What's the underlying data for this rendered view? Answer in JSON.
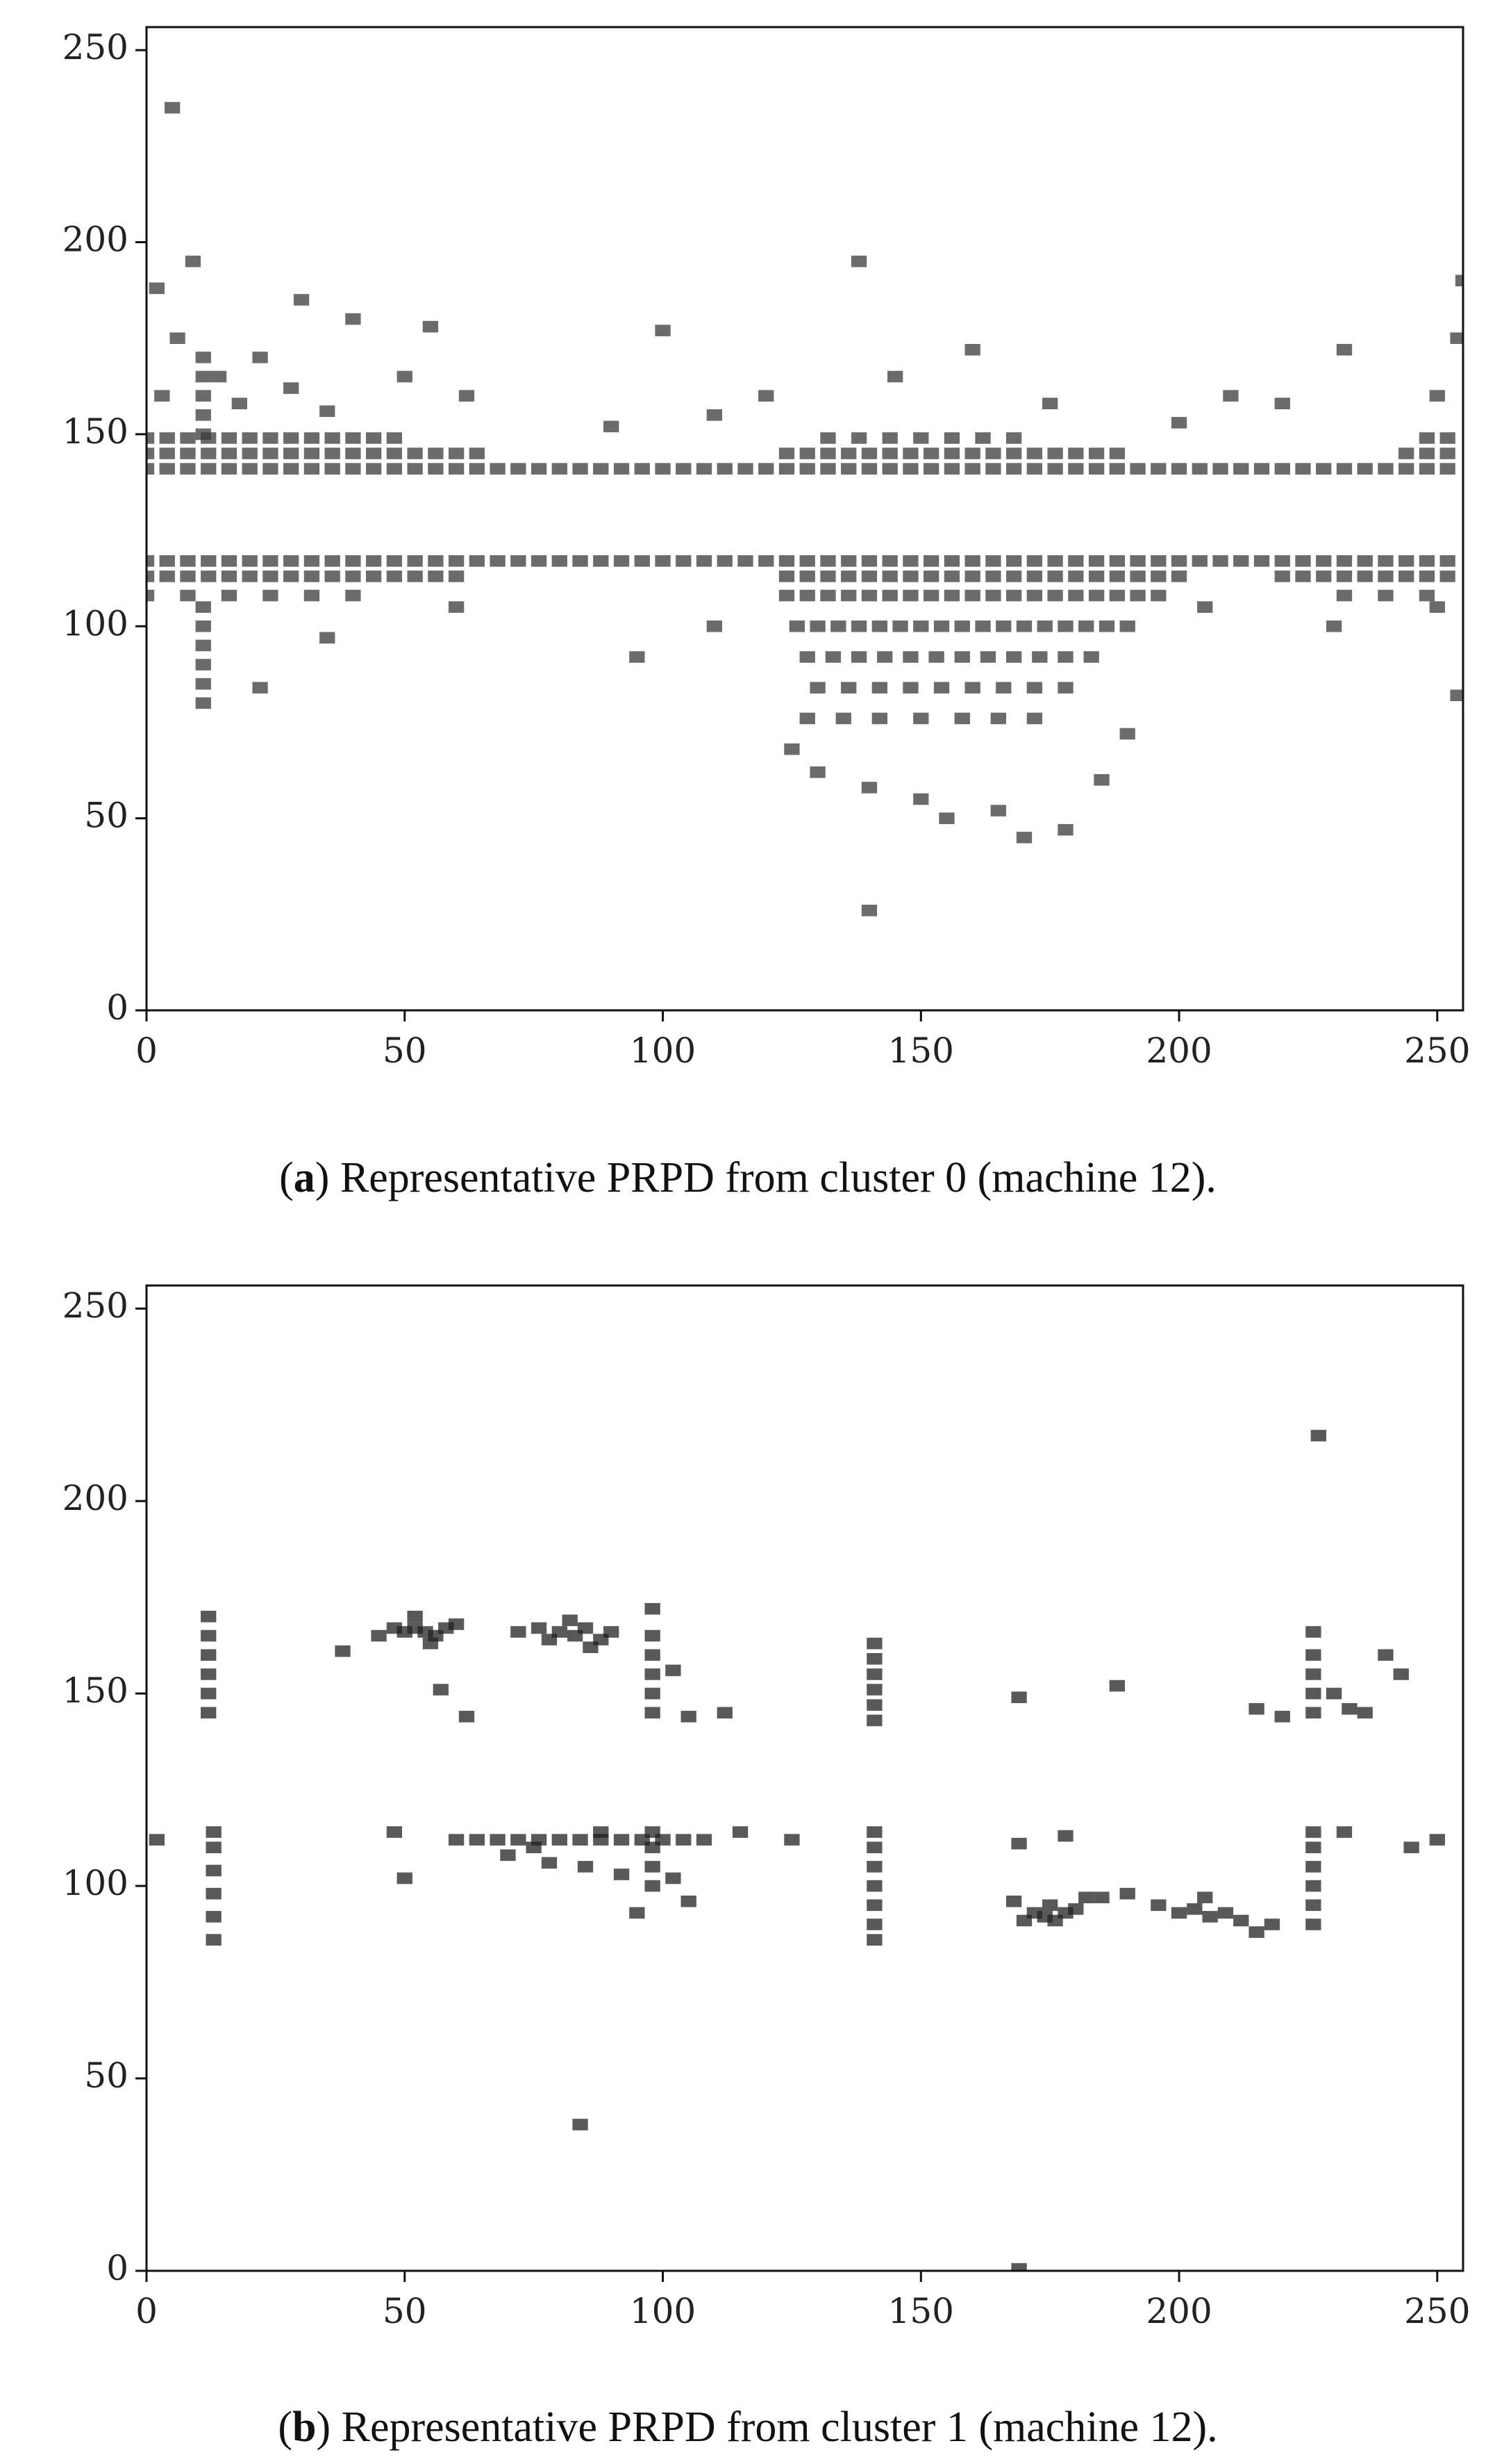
{
  "chart_data": [
    {
      "type": "scatter",
      "color": "#3a3a3a",
      "xlim": [
        0,
        255
      ],
      "ylim": [
        0,
        256
      ],
      "xticks": [
        0,
        50,
        100,
        150,
        200,
        250
      ],
      "yticks": [
        0,
        50,
        100,
        150,
        200,
        250
      ],
      "caption": [
        "(",
        "a",
        ") Representative PRPD from cluster 0 (machine 12)."
      ],
      "x": [
        0,
        4,
        8,
        12,
        16,
        20,
        24,
        28,
        32,
        36,
        40,
        44,
        48,
        52,
        56,
        60,
        64,
        68,
        72,
        76,
        80,
        84,
        88,
        92,
        96,
        100,
        104,
        108,
        112,
        116,
        120,
        124,
        128,
        132,
        136,
        140,
        144,
        148,
        152,
        156,
        160,
        164,
        168,
        172,
        176,
        180,
        184,
        188,
        192,
        196,
        200,
        204,
        208,
        212,
        216,
        220,
        224,
        228,
        232,
        236,
        240,
        244,
        248,
        252,
        0,
        4,
        8,
        12,
        16,
        20,
        24,
        28,
        32,
        36,
        40,
        44,
        48,
        52,
        56,
        60,
        64,
        124,
        128,
        132,
        136,
        140,
        144,
        148,
        152,
        156,
        160,
        164,
        168,
        172,
        176,
        180,
        184,
        188,
        244,
        248,
        252,
        0,
        4,
        8,
        12,
        16,
        20,
        24,
        28,
        32,
        36,
        40,
        44,
        48,
        132,
        138,
        144,
        150,
        156,
        162,
        168,
        248,
        252,
        3,
        6,
        14,
        18,
        22,
        28,
        35,
        40,
        50,
        55,
        62,
        2,
        9,
        5,
        30,
        100,
        120,
        138,
        145,
        160,
        175,
        210,
        220,
        232,
        250,
        254,
        255,
        90,
        110,
        200,
        11,
        11,
        11,
        11,
        11,
        11,
        11,
        11,
        11,
        11,
        11,
        0,
        4,
        8,
        12,
        16,
        20,
        24,
        28,
        32,
        36,
        40,
        44,
        48,
        52,
        56,
        60,
        64,
        68,
        72,
        76,
        80,
        84,
        88,
        92,
        96,
        100,
        104,
        108,
        112,
        116,
        120,
        124,
        128,
        132,
        136,
        140,
        144,
        148,
        152,
        156,
        160,
        164,
        168,
        172,
        176,
        180,
        184,
        188,
        192,
        196,
        200,
        204,
        208,
        212,
        216,
        220,
        224,
        228,
        232,
        236,
        240,
        244,
        248,
        252,
        0,
        4,
        8,
        12,
        16,
        20,
        24,
        28,
        32,
        36,
        40,
        44,
        48,
        52,
        56,
        60,
        124,
        128,
        132,
        136,
        140,
        144,
        148,
        152,
        156,
        160,
        164,
        168,
        172,
        176,
        180,
        184,
        188,
        192,
        196,
        200,
        220,
        224,
        228,
        232,
        236,
        240,
        244,
        248,
        252,
        0,
        8,
        16,
        24,
        32,
        40,
        124,
        128,
        132,
        136,
        140,
        144,
        148,
        152,
        156,
        160,
        164,
        168,
        172,
        176,
        180,
        184,
        188,
        192,
        196,
        232,
        240,
        248,
        126,
        130,
        134,
        138,
        142,
        146,
        150,
        154,
        158,
        162,
        166,
        170,
        174,
        178,
        182,
        186,
        190,
        128,
        133,
        138,
        143,
        148,
        153,
        158,
        163,
        168,
        173,
        178,
        183,
        130,
        136,
        142,
        148,
        154,
        160,
        166,
        172,
        178,
        128,
        135,
        142,
        150,
        158,
        165,
        172,
        125,
        130,
        140,
        150,
        155,
        165,
        170,
        178,
        140,
        185,
        190,
        22,
        35,
        60,
        95,
        110,
        230,
        250,
        254,
        205
      ],
      "y": [
        141,
        141,
        141,
        141,
        141,
        141,
        141,
        141,
        141,
        141,
        141,
        141,
        141,
        141,
        141,
        141,
        141,
        141,
        141,
        141,
        141,
        141,
        141,
        141,
        141,
        141,
        141,
        141,
        141,
        141,
        141,
        141,
        141,
        141,
        141,
        141,
        141,
        141,
        141,
        141,
        141,
        141,
        141,
        141,
        141,
        141,
        141,
        141,
        141,
        141,
        141,
        141,
        141,
        141,
        141,
        141,
        141,
        141,
        141,
        141,
        141,
        141,
        141,
        141,
        145,
        145,
        145,
        145,
        145,
        145,
        145,
        145,
        145,
        145,
        145,
        145,
        145,
        145,
        145,
        145,
        145,
        145,
        145,
        145,
        145,
        145,
        145,
        145,
        145,
        145,
        145,
        145,
        145,
        145,
        145,
        145,
        145,
        145,
        145,
        145,
        145,
        149,
        149,
        149,
        149,
        149,
        149,
        149,
        149,
        149,
        149,
        149,
        149,
        149,
        149,
        149,
        149,
        149,
        149,
        149,
        149,
        149,
        149,
        160,
        175,
        165,
        158,
        170,
        162,
        156,
        180,
        165,
        178,
        160,
        188,
        195,
        235,
        185,
        177,
        160,
        195,
        165,
        172,
        158,
        160,
        158,
        172,
        160,
        175,
        190,
        152,
        155,
        153,
        150,
        155,
        160,
        165,
        170,
        80,
        85,
        90,
        95,
        100,
        105,
        117,
        117,
        117,
        117,
        117,
        117,
        117,
        117,
        117,
        117,
        117,
        117,
        117,
        117,
        117,
        117,
        117,
        117,
        117,
        117,
        117,
        117,
        117,
        117,
        117,
        117,
        117,
        117,
        117,
        117,
        117,
        117,
        117,
        117,
        117,
        117,
        117,
        117,
        117,
        117,
        117,
        117,
        117,
        117,
        117,
        117,
        117,
        117,
        117,
        117,
        117,
        117,
        117,
        117,
        117,
        117,
        117,
        117,
        117,
        117,
        117,
        117,
        117,
        117,
        113,
        113,
        113,
        113,
        113,
        113,
        113,
        113,
        113,
        113,
        113,
        113,
        113,
        113,
        113,
        113,
        113,
        113,
        113,
        113,
        113,
        113,
        113,
        113,
        113,
        113,
        113,
        113,
        113,
        113,
        113,
        113,
        113,
        113,
        113,
        113,
        113,
        113,
        113,
        113,
        113,
        113,
        113,
        113,
        113,
        108,
        108,
        108,
        108,
        108,
        108,
        108,
        108,
        108,
        108,
        108,
        108,
        108,
        108,
        108,
        108,
        108,
        108,
        108,
        108,
        108,
        108,
        108,
        108,
        108,
        108,
        108,
        108,
        100,
        100,
        100,
        100,
        100,
        100,
        100,
        100,
        100,
        100,
        100,
        100,
        100,
        100,
        100,
        100,
        100,
        92,
        92,
        92,
        92,
        92,
        92,
        92,
        92,
        92,
        92,
        92,
        92,
        84,
        84,
        84,
        84,
        84,
        84,
        84,
        84,
        84,
        76,
        76,
        76,
        76,
        76,
        76,
        76,
        68,
        62,
        58,
        55,
        50,
        52,
        45,
        47,
        26,
        60,
        72,
        84,
        97,
        105,
        92,
        100,
        100,
        105,
        82,
        105
      ]
    },
    {
      "type": "scatter",
      "color": "#222222",
      "xlim": [
        0,
        255
      ],
      "ylim": [
        0,
        256
      ],
      "xticks": [
        0,
        50,
        100,
        150,
        200,
        250
      ],
      "yticks": [
        0,
        50,
        100,
        150,
        200,
        250
      ],
      "caption": [
        "(",
        "b",
        ") Representative PRPD from cluster 1 (machine 12)."
      ],
      "x": [
        12,
        12,
        12,
        12,
        12,
        12,
        13,
        13,
        13,
        13,
        13,
        13,
        45,
        48,
        50,
        52,
        54,
        56,
        58,
        52,
        55,
        38,
        60,
        62,
        57,
        72,
        76,
        80,
        83,
        85,
        88,
        90,
        82,
        86,
        78,
        98,
        98,
        98,
        98,
        98,
        98,
        102,
        105,
        112,
        98,
        98,
        98,
        98,
        60,
        64,
        68,
        72,
        76,
        80,
        84,
        88,
        92,
        96,
        100,
        104,
        108,
        70,
        78,
        85,
        92,
        102,
        105,
        95,
        75,
        88,
        115,
        125,
        48,
        50,
        2,
        141,
        141,
        141,
        141,
        141,
        141,
        141,
        141,
        141,
        141,
        141,
        141,
        141,
        169,
        169,
        169,
        170,
        172,
        174,
        176,
        178,
        180,
        175,
        182,
        168,
        185,
        196,
        200,
        203,
        206,
        209,
        212,
        215,
        205,
        218,
        190,
        226,
        226,
        226,
        226,
        226,
        226,
        226,
        226,
        226,
        226,
        226,
        215,
        220,
        230,
        233,
        236,
        240,
        243,
        232,
        245,
        250,
        227,
        188,
        84,
        178
      ],
      "y": [
        145,
        150,
        155,
        160,
        165,
        170,
        86,
        92,
        98,
        104,
        110,
        114,
        165,
        167,
        166,
        167,
        166,
        165,
        167,
        170,
        163,
        161,
        168,
        144,
        151,
        166,
        167,
        166,
        165,
        167,
        164,
        166,
        169,
        162,
        164,
        145,
        150,
        155,
        160,
        165,
        172,
        156,
        144,
        145,
        100,
        105,
        110,
        114,
        112,
        112,
        112,
        112,
        112,
        112,
        112,
        112,
        112,
        112,
        112,
        112,
        112,
        108,
        106,
        105,
        103,
        102,
        96,
        93,
        110,
        114,
        114,
        112,
        114,
        102,
        112,
        143,
        147,
        151,
        155,
        159,
        163,
        86,
        90,
        95,
        100,
        105,
        110,
        114,
        149,
        0.5,
        111,
        91,
        93,
        92,
        91,
        93,
        94,
        95,
        97,
        96,
        97,
        95,
        93,
        94,
        92,
        93,
        91,
        88,
        97,
        90,
        98,
        145,
        150,
        155,
        160,
        166,
        90,
        95,
        100,
        105,
        110,
        114,
        146,
        144,
        150,
        146,
        145,
        160,
        155,
        114,
        110,
        112,
        217,
        152,
        38,
        113
      ]
    }
  ]
}
